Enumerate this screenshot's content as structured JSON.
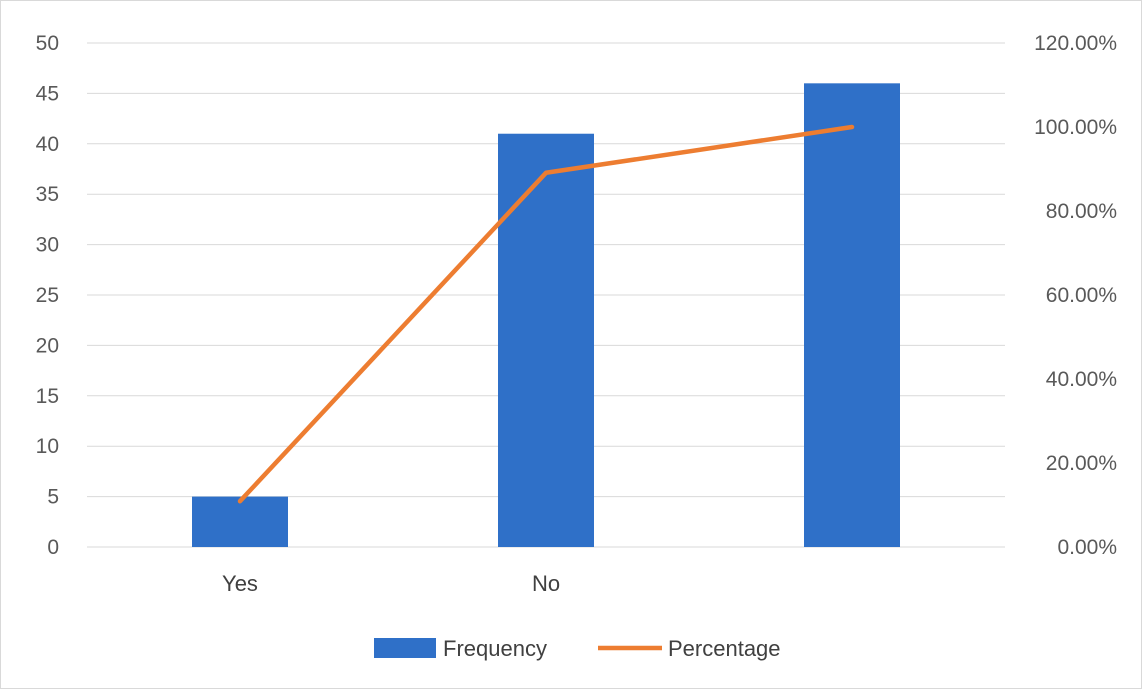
{
  "chart_data": {
    "type": "bar",
    "combo": "bar+line",
    "categories": [
      "Yes",
      "No",
      ""
    ],
    "series": [
      {
        "name": "Frequency",
        "type": "bar",
        "axis": "left",
        "values": [
          5,
          41,
          46
        ],
        "color": "#2f70c8"
      },
      {
        "name": "Percentage",
        "type": "line",
        "axis": "right",
        "values": [
          10.9,
          89.1,
          100.0
        ],
        "color": "#ed7d31"
      }
    ],
    "y_left": {
      "min": 0,
      "max": 50,
      "step": 5,
      "ticks": [
        "0",
        "5",
        "10",
        "15",
        "20",
        "25",
        "30",
        "35",
        "40",
        "45",
        "50"
      ]
    },
    "y_right": {
      "min": 0,
      "max": 120,
      "step": 20,
      "ticks": [
        "0.00%",
        "20.00%",
        "40.00%",
        "60.00%",
        "80.00%",
        "100.00%",
        "120.00%"
      ]
    },
    "grid": true,
    "grid_color": "#d9d9d9",
    "legend_position": "bottom",
    "title": "",
    "xlabel": "",
    "ylabel": ""
  }
}
